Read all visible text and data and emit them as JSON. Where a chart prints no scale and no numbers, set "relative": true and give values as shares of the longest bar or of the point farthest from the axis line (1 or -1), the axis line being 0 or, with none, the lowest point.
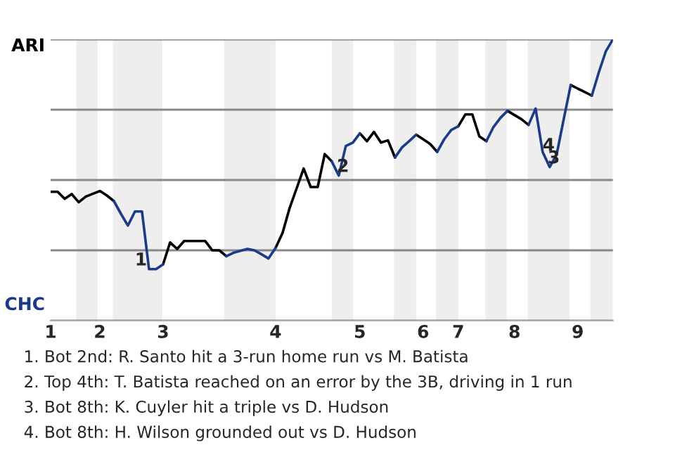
{
  "chart_data": {
    "type": "line",
    "relative": true,
    "categories": [
      "1",
      null,
      null,
      null,
      null,
      null,
      null,
      "2",
      null,
      null,
      null,
      null,
      null,
      null,
      null,
      null,
      "3",
      null,
      null,
      null,
      null,
      null,
      null,
      null,
      null,
      null,
      null,
      null,
      null,
      null,
      null,
      null,
      "4",
      null,
      null,
      null,
      null,
      null,
      null,
      null,
      null,
      null,
      null,
      null,
      "5",
      null,
      null,
      null,
      null,
      null,
      null,
      null,
      null,
      "6",
      null,
      null,
      null,
      null,
      "7",
      null,
      null,
      null,
      null,
      null,
      null,
      null,
      "8",
      null,
      null,
      null,
      null,
      null,
      null,
      null,
      null,
      "9",
      null,
      null,
      null,
      null,
      null
    ],
    "series": [
      {
        "color": "#000000",
        "values": [
          0.458,
          0.458,
          0.433,
          0.45,
          0.421,
          0.441,
          0.451,
          0.461,
          0.445,
          0.425,
          null,
          null,
          null,
          null,
          null,
          null,
          0.2,
          0.278,
          0.255,
          0.283,
          0.283,
          0.283,
          0.283,
          0.25,
          0.25,
          0.229,
          null,
          null,
          null,
          null,
          null,
          null,
          0.258,
          0.312,
          0.4,
          0.47,
          0.541,
          0.475,
          0.475,
          0.592,
          0.566,
          null,
          null,
          null,
          0.666,
          0.638,
          0.671,
          0.633,
          0.641,
          0.58,
          null,
          null,
          0.661,
          0.645,
          0.628,
          0.6,
          null,
          null,
          0.691,
          0.733,
          0.733,
          0.655,
          0.638,
          null,
          null,
          0.746,
          0.731,
          0.716,
          0.696,
          null,
          null,
          null,
          null,
          null,
          0.838,
          0.825,
          0.813,
          0.8,
          null,
          null,
          null
        ]
      },
      {
        "color": "#1a3a8a",
        "values": [
          null,
          null,
          null,
          null,
          null,
          null,
          null,
          null,
          null,
          0.425,
          0.38,
          0.338,
          0.388,
          0.388,
          0.183,
          0.183,
          0.2,
          null,
          null,
          null,
          null,
          null,
          null,
          null,
          null,
          0.229,
          0.241,
          0.248,
          0.255,
          0.25,
          0.236,
          0.221,
          0.258,
          null,
          null,
          null,
          null,
          null,
          null,
          null,
          0.566,
          0.516,
          0.621,
          0.633,
          0.666,
          null,
          null,
          null,
          null,
          0.58,
          0.616,
          0.638,
          0.661,
          null,
          null,
          0.6,
          0.645,
          0.678,
          0.691,
          null,
          null,
          null,
          0.638,
          0.688,
          0.721,
          0.746,
          null,
          null,
          0.696,
          0.754,
          0.6,
          0.546,
          0.591,
          0.716,
          0.838,
          null,
          null,
          0.8,
          0.883,
          0.958,
          1.0
        ]
      }
    ],
    "grid": "y",
    "annotations": [
      {
        "text": "1",
        "y": 0.183
      },
      {
        "text": "2",
        "y": 0.516
      },
      {
        "text": "3",
        "y": 0.546
      },
      {
        "text": "4",
        "y": 0.591
      },
      "ARI",
      "CHC",
      "1. Bot 2nd: R. Santo hit a 3-run home run vs M. Batista",
      "2. Top 4th: T. Batista reached on an error by the 3B, driving in 1 run",
      "3. Bot 8th: K. Cuyler hit a triple vs D. Hudson",
      "4. Bot 8th: H. Wilson grounded out vs D. Hudson"
    ]
  }
}
